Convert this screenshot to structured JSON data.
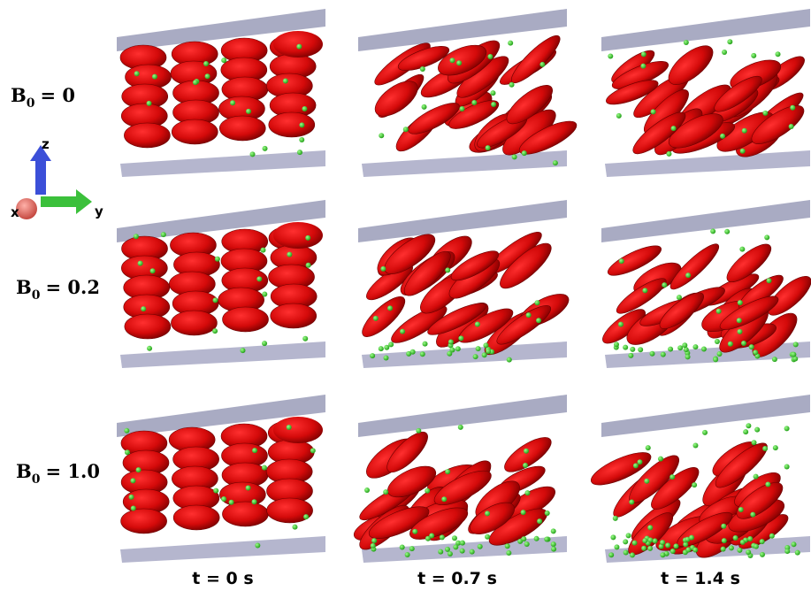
{
  "rows": [
    {
      "symbol": "B",
      "subscript": "0",
      "value_text": "= 0"
    },
    {
      "symbol": "B",
      "subscript": "0",
      "value_text": "= 0.2"
    },
    {
      "symbol": "B",
      "subscript": "0",
      "value_text": "= 1.0"
    }
  ],
  "columns": [
    "t = 0 s",
    "t = 0.7 s",
    "t = 1.4 s"
  ],
  "axes": {
    "z": "z",
    "x": "x",
    "y": "y"
  }
}
